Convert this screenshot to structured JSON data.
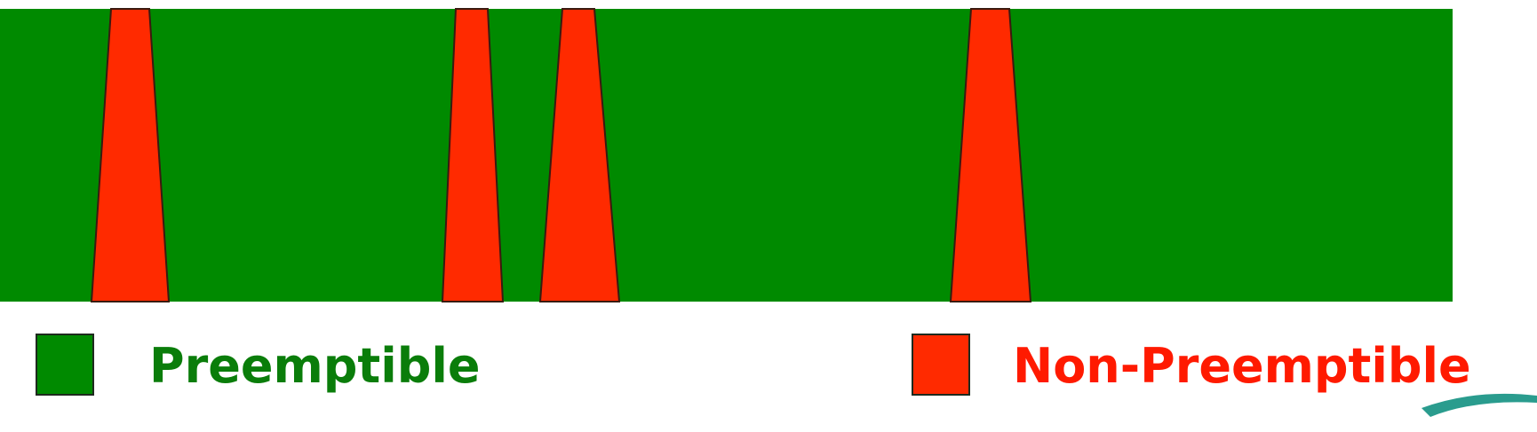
{
  "legend": {
    "preemptible": {
      "label": "Preemptible",
      "color": "#008a00",
      "text_color": "#0a7d0a"
    },
    "non_preemptible": {
      "label": "Non-Preemptible",
      "color": "#ff2a00",
      "text_color": "#ff1a00"
    }
  },
  "band": {
    "color": "#008a00",
    "spike_color": "#ff2a00",
    "spike_count": 4
  },
  "decoration": {
    "swoosh_color": "#2a9c8e"
  }
}
